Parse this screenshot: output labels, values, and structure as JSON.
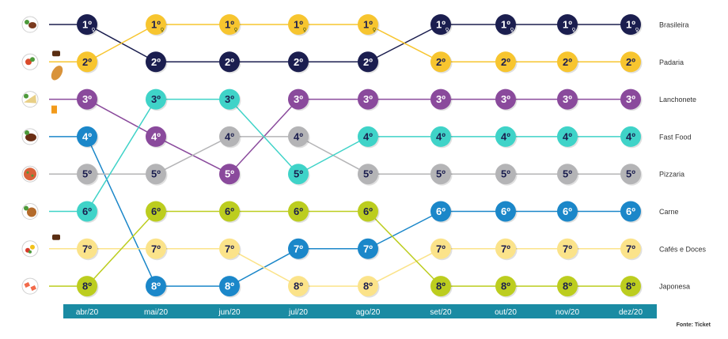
{
  "chart_data": {
    "type": "bump",
    "title": "",
    "xlabel": "",
    "ylabel": "",
    "months": [
      "abr/20",
      "mai/20",
      "jun/20",
      "jul/20",
      "ago/20",
      "set/20",
      "out/20",
      "nov/20",
      "dez/20"
    ],
    "series": [
      {
        "name": "Brasileira",
        "color": "#1b1e4f",
        "text_color": "#ffffff",
        "icon": "dish-steak-rice-icon",
        "ranks": [
          1,
          2,
          2,
          2,
          2,
          1,
          1,
          1,
          1
        ]
      },
      {
        "name": "Padaria",
        "color": "#f7c52f",
        "text_color": "#1b1e4f",
        "icon": "bread-coffee-icon",
        "ranks": [
          2,
          1,
          1,
          1,
          1,
          2,
          2,
          2,
          2
        ]
      },
      {
        "name": "Lanchonete",
        "color": "#8a4a9c",
        "text_color": "#ffffff",
        "icon": "sandwich-juice-icon",
        "ranks": [
          3,
          4,
          5,
          3,
          3,
          3,
          3,
          3,
          3
        ]
      },
      {
        "name": "Fast Food",
        "color": "#1b87c9",
        "text_color": "#ffffff",
        "icon": "burger-icon",
        "ranks": [
          4,
          8,
          8,
          7,
          7,
          6,
          6,
          6,
          6
        ]
      },
      {
        "name": "Pizzaria",
        "color": "#b4b4b6",
        "text_color": "#1b1e4f",
        "icon": "pizza-icon",
        "ranks": [
          5,
          5,
          4,
          4,
          5,
          5,
          5,
          5,
          5
        ]
      },
      {
        "name": "Carne",
        "color": "#3fd3c8",
        "text_color": "#1b1e4f",
        "icon": "meat-salad-icon",
        "ranks": [
          6,
          3,
          3,
          5,
          4,
          4,
          4,
          4,
          4
        ]
      },
      {
        "name": "Cafés e Doces",
        "color": "#fbe38a",
        "text_color": "#1b1e4f",
        "icon": "cake-coffee-icon",
        "ranks": [
          7,
          7,
          7,
          8,
          8,
          7,
          7,
          7,
          7
        ]
      },
      {
        "name": "Japonesa",
        "color": "#bccd1f",
        "text_color": "#1b1e4f",
        "icon": "sushi-icon",
        "ranks": [
          8,
          6,
          6,
          6,
          6,
          8,
          8,
          8,
          8
        ]
      }
    ],
    "row_labels": [
      "Brasileira",
      "Padaria",
      "Lanchonete",
      "Fast Food",
      "Pizzaria",
      "Carne",
      "Cafés e Doces",
      "Japonesa"
    ],
    "rank_suffix": "º",
    "first_place_mark": "♀",
    "grid": false,
    "legend": "right"
  },
  "footer": {
    "source": "Fonte: Ticket"
  },
  "colors": {
    "month_bar": "#1a8ba3"
  }
}
